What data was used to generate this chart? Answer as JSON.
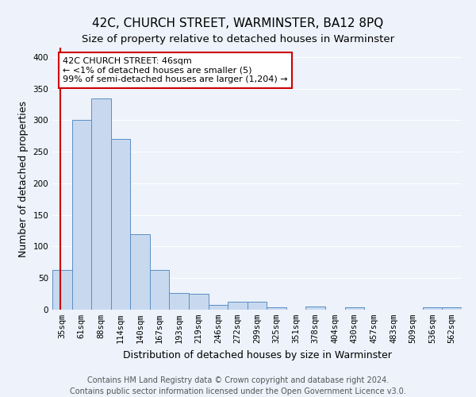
{
  "title": "42C, CHURCH STREET, WARMINSTER, BA12 8PQ",
  "subtitle": "Size of property relative to detached houses in Warminster",
  "xlabel": "Distribution of detached houses by size in Warminster",
  "ylabel": "Number of detached properties",
  "bar_labels": [
    "35sqm",
    "61sqm",
    "88sqm",
    "114sqm",
    "140sqm",
    "167sqm",
    "193sqm",
    "219sqm",
    "246sqm",
    "272sqm",
    "299sqm",
    "325sqm",
    "351sqm",
    "378sqm",
    "404sqm",
    "430sqm",
    "457sqm",
    "483sqm",
    "509sqm",
    "536sqm",
    "562sqm"
  ],
  "bar_values": [
    63,
    300,
    335,
    270,
    120,
    63,
    27,
    25,
    8,
    13,
    13,
    4,
    0,
    5,
    0,
    4,
    0,
    0,
    0,
    4,
    4
  ],
  "bar_color": "#c8d9ef",
  "bar_edge_color": "#5b8ec4",
  "annotation_text_line1": "42C CHURCH STREET: 46sqm",
  "annotation_text_line2": "← <1% of detached houses are smaller (5)",
  "annotation_text_line3": "99% of semi-detached houses are larger (1,204) →",
  "annotation_box_facecolor": "#ffffff",
  "annotation_box_edgecolor": "#cc0000",
  "vline_color": "#cc0000",
  "bg_color": "#edf2fb",
  "footer_line1": "Contains HM Land Registry data © Crown copyright and database right 2024.",
  "footer_line2": "Contains public sector information licensed under the Open Government Licence v3.0.",
  "ylim": [
    0,
    415
  ],
  "yticks": [
    0,
    50,
    100,
    150,
    200,
    250,
    300,
    350,
    400
  ],
  "grid_color": "#ffffff",
  "title_fontsize": 11,
  "subtitle_fontsize": 9.5,
  "axis_label_fontsize": 9,
  "tick_fontsize": 7.5,
  "footer_fontsize": 7,
  "ann_fontsize": 8
}
